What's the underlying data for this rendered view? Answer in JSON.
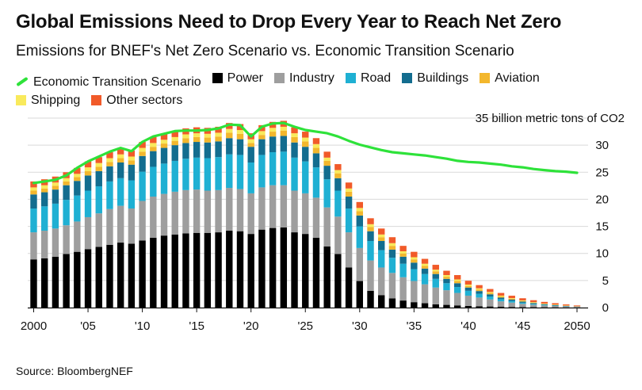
{
  "header": {
    "title": "Global Emissions Need to Drop Every Year to Reach Net Zero",
    "subtitle": "Emissions for BNEF's Net Zero Scenario vs. Economic Transition Scenario"
  },
  "source": "Source: BloombergNEF",
  "chart_data": {
    "type": "bar",
    "stacked": true,
    "x_ordinal": [
      2000,
      2001,
      2002,
      2003,
      2004,
      2005,
      2006,
      2007,
      2008,
      2009,
      2010,
      2011,
      2012,
      2013,
      2014,
      2015,
      2016,
      2017,
      2018,
      2019,
      2020,
      2021,
      2022,
      2023,
      2024,
      2025,
      2026,
      2027,
      2028,
      2029,
      2030,
      2031,
      2032,
      2033,
      2034,
      2035,
      2036,
      2037,
      2038,
      2039,
      2040,
      2041,
      2042,
      2043,
      2044,
      2045,
      2046,
      2047,
      2048,
      2049,
      2050
    ],
    "ylim": [
      0,
      35
    ],
    "yticks": [
      0,
      5,
      10,
      15,
      20,
      25,
      30
    ],
    "unit_label": "35 billion metric tons of CO2",
    "xtick_labels": [
      {
        "x": 2000,
        "label": "2000"
      },
      {
        "x": 2005,
        "label": "'05"
      },
      {
        "x": 2010,
        "label": "'10"
      },
      {
        "x": 2015,
        "label": "'15"
      },
      {
        "x": 2020,
        "label": "'20"
      },
      {
        "x": 2025,
        "label": "'25"
      },
      {
        "x": 2030,
        "label": "'30"
      },
      {
        "x": 2035,
        "label": "'35"
      },
      {
        "x": 2040,
        "label": "'40"
      },
      {
        "x": 2045,
        "label": "'45"
      },
      {
        "x": 2050,
        "label": "2050"
      }
    ],
    "series": [
      {
        "name": "Power",
        "color": "#000000",
        "values": [
          8.9,
          9.1,
          9.4,
          9.9,
          10.3,
          10.8,
          11.2,
          11.6,
          12.0,
          11.8,
          12.4,
          12.9,
          13.3,
          13.5,
          13.7,
          13.8,
          13.8,
          13.9,
          14.2,
          14.1,
          13.6,
          14.4,
          14.7,
          14.8,
          13.9,
          13.6,
          12.9,
          11.3,
          9.9,
          7.4,
          4.9,
          3.1,
          2.3,
          1.7,
          1.3,
          1.0,
          0.8,
          0.6,
          0.5,
          0.4,
          0.3,
          0.25,
          0.2,
          0.15,
          0.12,
          0.1,
          0.08,
          0.06,
          0.05,
          0.04,
          0.03
        ]
      },
      {
        "name": "Industry",
        "color": "#9e9e9e",
        "values": [
          5.0,
          5.1,
          5.2,
          5.3,
          5.6,
          5.9,
          6.2,
          6.6,
          6.8,
          6.5,
          7.3,
          7.6,
          7.7,
          7.9,
          8.0,
          8.0,
          7.8,
          7.8,
          7.9,
          7.8,
          7.5,
          7.8,
          7.9,
          7.8,
          7.7,
          7.5,
          7.4,
          7.2,
          6.9,
          6.5,
          6.1,
          5.6,
          5.1,
          4.7,
          4.3,
          3.9,
          3.5,
          3.1,
          2.7,
          2.3,
          1.9,
          1.6,
          1.3,
          1.0,
          0.8,
          0.6,
          0.45,
          0.35,
          0.25,
          0.15,
          0.1
        ]
      },
      {
        "name": "Road",
        "color": "#1fb0d3",
        "values": [
          4.4,
          4.5,
          4.6,
          4.7,
          4.8,
          4.9,
          5.0,
          5.1,
          5.1,
          5.2,
          5.4,
          5.5,
          5.6,
          5.7,
          5.8,
          5.9,
          6.0,
          6.1,
          6.2,
          6.3,
          5.7,
          6.0,
          6.1,
          6.2,
          6.1,
          5.9,
          5.6,
          5.2,
          4.8,
          4.4,
          4.0,
          3.6,
          3.2,
          2.8,
          2.5,
          2.2,
          1.9,
          1.6,
          1.3,
          1.1,
          0.9,
          0.7,
          0.55,
          0.4,
          0.3,
          0.2,
          0.15,
          0.1,
          0.07,
          0.05,
          0.03
        ]
      },
      {
        "name": "Buildings",
        "color": "#136d8f",
        "values": [
          2.6,
          2.6,
          2.6,
          2.7,
          2.7,
          2.8,
          2.8,
          2.8,
          2.9,
          2.9,
          2.9,
          2.9,
          2.9,
          2.9,
          2.9,
          2.9,
          2.9,
          2.9,
          3.0,
          2.9,
          2.9,
          2.9,
          2.9,
          2.9,
          2.8,
          2.7,
          2.6,
          2.5,
          2.3,
          2.2,
          2.0,
          1.8,
          1.7,
          1.5,
          1.3,
          1.2,
          1.0,
          0.9,
          0.8,
          0.7,
          0.6,
          0.5,
          0.4,
          0.3,
          0.25,
          0.2,
          0.15,
          0.1,
          0.08,
          0.05,
          0.03
        ]
      },
      {
        "name": "Aviation",
        "color": "#f3b72d",
        "values": [
          0.7,
          0.7,
          0.7,
          0.7,
          0.7,
          0.8,
          0.8,
          0.8,
          0.8,
          0.8,
          0.8,
          0.8,
          0.8,
          0.8,
          0.9,
          0.9,
          0.9,
          0.9,
          1.0,
          1.0,
          0.7,
          0.8,
          0.9,
          1.0,
          1.0,
          1.0,
          1.0,
          0.9,
          0.9,
          0.9,
          0.8,
          0.8,
          0.7,
          0.7,
          0.6,
          0.6,
          0.5,
          0.5,
          0.4,
          0.4,
          0.3,
          0.3,
          0.25,
          0.2,
          0.15,
          0.12,
          0.1,
          0.08,
          0.06,
          0.05,
          0.03
        ]
      },
      {
        "name": "Shipping",
        "color": "#f9ea5c",
        "values": [
          0.6,
          0.6,
          0.6,
          0.6,
          0.6,
          0.7,
          0.7,
          0.7,
          0.7,
          0.7,
          0.7,
          0.7,
          0.7,
          0.7,
          0.7,
          0.7,
          0.7,
          0.7,
          0.7,
          0.7,
          0.7,
          0.7,
          0.7,
          0.7,
          0.7,
          0.7,
          0.7,
          0.6,
          0.6,
          0.6,
          0.6,
          0.5,
          0.5,
          0.5,
          0.4,
          0.4,
          0.4,
          0.3,
          0.3,
          0.3,
          0.25,
          0.2,
          0.18,
          0.15,
          0.12,
          0.1,
          0.08,
          0.06,
          0.05,
          0.04,
          0.02
        ]
      },
      {
        "name": "Other sectors",
        "color": "#f15a29",
        "values": [
          1.1,
          1.1,
          1.1,
          1.1,
          1.1,
          1.1,
          1.1,
          1.1,
          1.1,
          1.1,
          1.1,
          1.1,
          1.1,
          1.1,
          1.1,
          1.1,
          1.1,
          1.1,
          1.1,
          1.1,
          1.1,
          1.1,
          1.1,
          1.1,
          1.1,
          1.1,
          1.1,
          1.1,
          1.1,
          1.1,
          1.1,
          1.1,
          1.1,
          1.1,
          1.0,
          1.0,
          0.9,
          0.9,
          0.8,
          0.8,
          0.7,
          0.6,
          0.55,
          0.5,
          0.45,
          0.4,
          0.35,
          0.3,
          0.25,
          0.2,
          0.15
        ]
      }
    ],
    "line_series": {
      "name": "Economic Transition Scenario",
      "color": "#2ee23a",
      "x": [
        2000,
        2001,
        2002,
        2003,
        2004,
        2005,
        2006,
        2007,
        2008,
        2009,
        2010,
        2011,
        2012,
        2013,
        2014,
        2015,
        2016,
        2017,
        2018,
        2019,
        2020,
        2021,
        2022,
        2023,
        2024,
        2025,
        2026,
        2027,
        2028,
        2029,
        2030,
        2031,
        2032,
        2033,
        2034,
        2035,
        2036,
        2037,
        2038,
        2039,
        2040,
        2041,
        2042,
        2043,
        2044,
        2045,
        2046,
        2047,
        2048,
        2049,
        2050
      ],
      "values": [
        23.0,
        23.3,
        23.6,
        24.4,
        25.8,
        27.0,
        27.9,
        28.8,
        29.5,
        28.9,
        30.6,
        31.6,
        32.1,
        32.6,
        32.7,
        32.7,
        32.8,
        33.1,
        33.8,
        33.7,
        31.6,
        33.4,
        34.0,
        34.1,
        33.4,
        32.8,
        32.5,
        32.2,
        31.6,
        30.8,
        30.1,
        29.6,
        29.1,
        28.7,
        28.5,
        28.3,
        28.1,
        27.8,
        27.5,
        27.1,
        26.9,
        26.8,
        26.6,
        26.4,
        26.1,
        25.9,
        25.6,
        25.4,
        25.2,
        25.1,
        24.9
      ]
    }
  }
}
